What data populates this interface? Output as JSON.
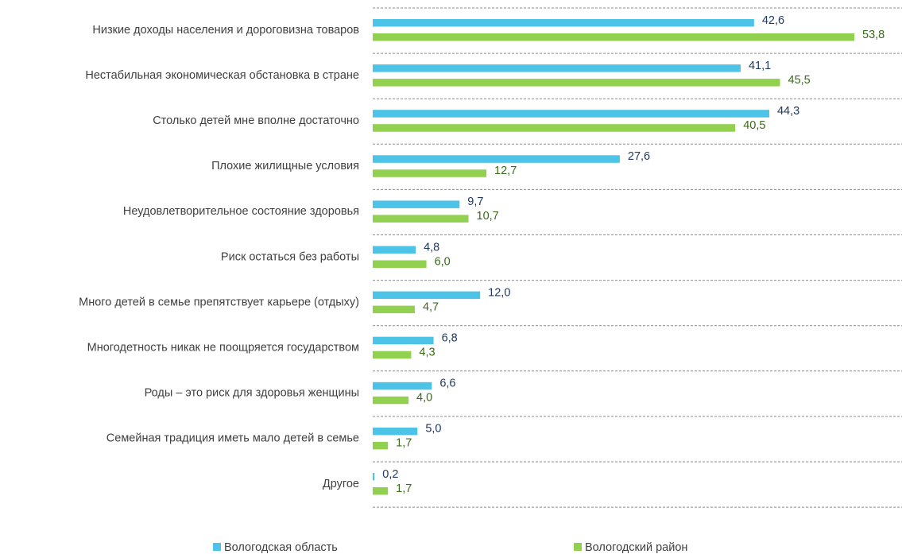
{
  "chart_data": {
    "type": "hbar",
    "categories": [
      "Низкие доходы населения и дороговизна товаров",
      "Нестабильная экономическая обстановка в стране",
      "Столько детей мне вполне достаточно",
      "Плохие жилищные условия",
      "Неудовлетворительное состояние здоровья",
      "Риск остаться без работы",
      "Много детей в семье препятствует карьере (отдыху)",
      "Многодетность никак не поощряется государством",
      "Роды – это риск для здоровья женщины",
      "Семейная традиция иметь мало детей в семье",
      "Другое"
    ],
    "series": [
      {
        "name": "Вологодская область",
        "color": "#4dc3e8",
        "label_color": "#1f3864",
        "values": [
          42.6,
          41.1,
          44.3,
          27.6,
          9.7,
          4.8,
          12.0,
          6.8,
          6.6,
          5.0,
          0.2
        ],
        "value_labels": [
          "42,6",
          "41,1",
          "44,3",
          "27,6",
          "9,7",
          "4,8",
          "12,0",
          "6,8",
          "6,6",
          "5,0",
          "0,2"
        ]
      },
      {
        "name": "Вологодский район",
        "color": "#92d050",
        "label_color": "#3a6a1a",
        "values": [
          53.8,
          45.5,
          40.5,
          12.7,
          10.7,
          6.0,
          4.7,
          4.3,
          4.0,
          1.7,
          1.7
        ],
        "value_labels": [
          "53,8",
          "45,5",
          "40,5",
          "12,7",
          "10,7",
          "6,0",
          "4,7",
          "4,3",
          "4,0",
          "1,7",
          "1,7"
        ]
      }
    ],
    "legend": "bottom"
  }
}
